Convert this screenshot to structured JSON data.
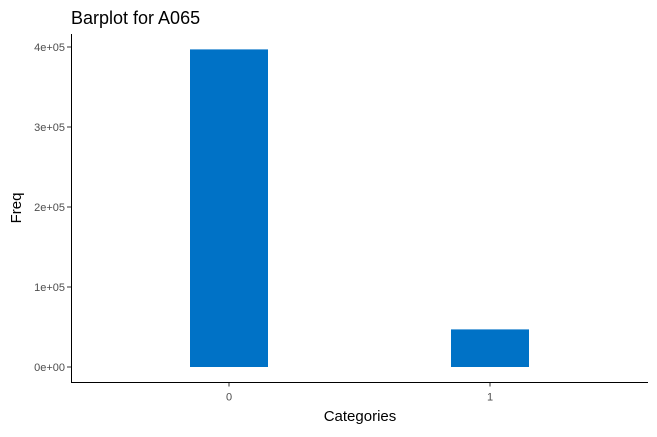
{
  "chart_data": {
    "type": "bar",
    "title": "Barplot for A065",
    "xlabel": "Categories",
    "ylabel": "Freq",
    "categories": [
      "0",
      "1"
    ],
    "values": [
      397000,
      47000
    ],
    "ylim": [
      0,
      420000
    ],
    "yticks": [
      0,
      100000,
      200000,
      300000,
      400000
    ],
    "ytick_labels": [
      "0e+00",
      "1e+05",
      "2e+05",
      "3e+05",
      "4e+05"
    ],
    "grid": false,
    "legend": "none",
    "bar_color": "#0072C6",
    "axis_color": "#000000",
    "tick_label_color": "#4d4d4d"
  }
}
